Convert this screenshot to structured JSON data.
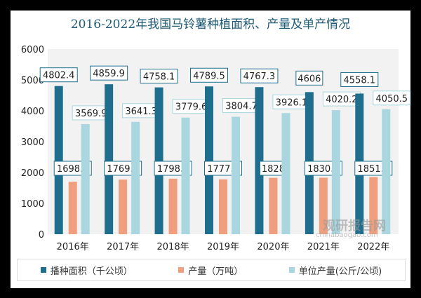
{
  "chart_data": {
    "type": "bar",
    "title": "2016-2022年我国马铃薯种植面积、产量及单产情况",
    "categories": [
      "2016年",
      "2017年",
      "2018年",
      "2019年",
      "2020年",
      "2021年",
      "2022年"
    ],
    "series": [
      {
        "name": "播种面积（千公顷）",
        "color": "#1f6e8e",
        "values": [
          4802.4,
          4859.9,
          4758.1,
          4789.5,
          4767.3,
          4606,
          4558.1
        ]
      },
      {
        "name": "产量（万吨）",
        "color": "#ef9f7e",
        "values": [
          1698.6,
          1769.6,
          1798.4,
          1777.9,
          1828,
          1830.9,
          1851.6
        ]
      },
      {
        "name": "单位产量(公斤/公顷)",
        "color": "#a9d6df",
        "values": [
          3569.9,
          3641.3,
          3779.6,
          3804.7,
          3926.1,
          4020.2,
          4050.5
        ]
      }
    ],
    "ylim": [
      0,
      6000
    ],
    "yticks": [
      0,
      1000,
      2000,
      3000,
      4000,
      5000,
      6000
    ],
    "legend": "bottom",
    "grid": false
  },
  "watermark": {
    "text": "观研报告网",
    "url_text": "chinabaogao.com"
  }
}
